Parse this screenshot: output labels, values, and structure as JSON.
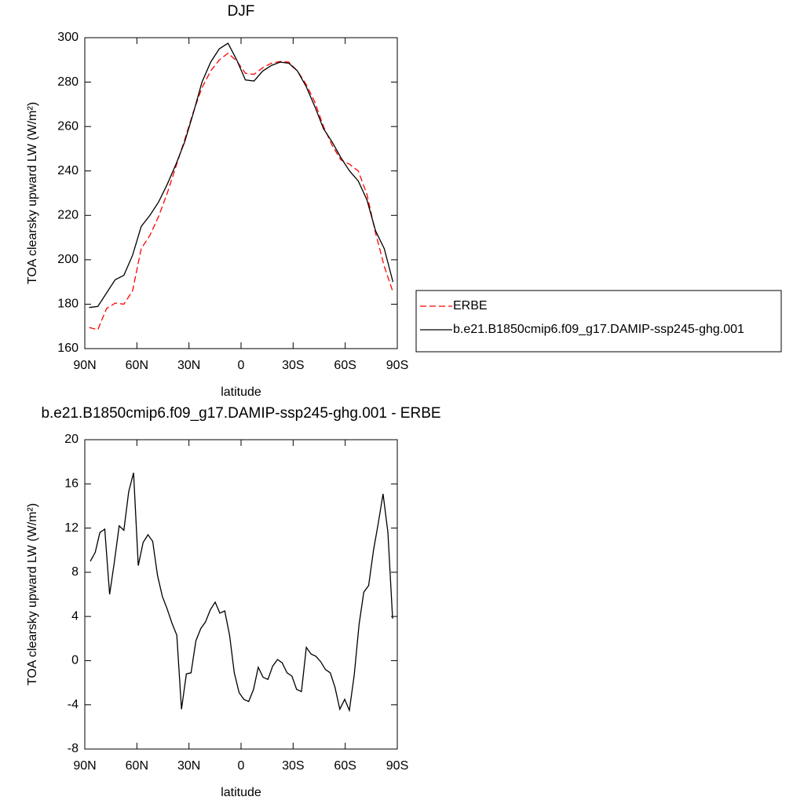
{
  "chart_data": [
    {
      "type": "line",
      "title": "DJF",
      "x_label": "latitude",
      "y_label": "TOA clearsky upward LW (W/m²)",
      "xlim": [
        90,
        -90
      ],
      "xticks": [
        {
          "value": 90,
          "label": "90N"
        },
        {
          "value": 60,
          "label": "60N"
        },
        {
          "value": 30,
          "label": "30N"
        },
        0,
        {
          "value": -30,
          "label": "30S"
        },
        {
          "value": -60,
          "label": "60S"
        },
        {
          "value": -90,
          "label": "90S"
        }
      ],
      "ylim": [
        160,
        300
      ],
      "yticks": [
        160,
        180,
        200,
        220,
        240,
        260,
        280,
        300
      ],
      "legend": "right",
      "x": [
        87.5,
        82.5,
        77.5,
        72.5,
        67.5,
        62.5,
        57.5,
        52.5,
        47.5,
        42.5,
        37.5,
        32.5,
        27.5,
        22.5,
        17.5,
        12.5,
        7.5,
        2.5,
        -2.5,
        -7.5,
        -12.5,
        -17.5,
        -22.5,
        -27.5,
        -32.5,
        -37.5,
        -42.5,
        -47.5,
        -52.5,
        -57.5,
        -62.5,
        -67.5,
        -72.5,
        -77.5,
        -82.5,
        -87.5
      ],
      "series": [
        {
          "name": "ERBE",
          "color": "#ff0000",
          "dashed": true,
          "values": [
            169.5,
            168.5,
            178,
            180.5,
            180,
            186,
            205,
            211,
            219.5,
            230,
            242,
            254,
            266.5,
            277.5,
            285,
            290,
            293,
            289.5,
            284,
            283.5,
            286.5,
            288.5,
            289.3,
            289,
            285,
            279,
            271,
            260,
            251.5,
            245,
            243,
            240,
            229.5,
            212,
            197,
            185.5
          ]
        },
        {
          "name": "b.e21.B1850cmip6.f09_g17.DAMIP-ssp245-ghg.001",
          "color": "#000000",
          "dashed": false,
          "values": [
            178.5,
            179,
            185,
            191,
            193,
            202,
            215,
            220,
            226,
            234,
            243,
            253,
            266,
            280,
            289,
            295,
            297.5,
            290,
            281,
            280.5,
            285,
            287.5,
            289,
            288.5,
            285,
            278,
            269,
            259,
            253,
            246,
            240,
            235.5,
            227,
            213,
            205,
            190
          ]
        }
      ]
    },
    {
      "type": "line",
      "title": "b.e21.B1850cmip6.f09_g17.DAMIP-ssp245-ghg.001 - ERBE",
      "x_label": "latitude",
      "y_label": "TOA clearsky upward LW (W/m²)",
      "xlim": [
        90,
        -90
      ],
      "xticks": [
        {
          "value": 90,
          "label": "90N"
        },
        {
          "value": 60,
          "label": "60N"
        },
        {
          "value": 30,
          "label": "30N"
        },
        0,
        {
          "value": -30,
          "label": "30S"
        },
        {
          "value": -60,
          "label": "60S"
        },
        {
          "value": -90,
          "label": "90S"
        }
      ],
      "ylim": [
        -8,
        20
      ],
      "yticks": [
        -8,
        -4,
        0,
        4,
        8,
        12,
        16,
        20
      ],
      "x": [
        86.8,
        84.0,
        81.3,
        78.5,
        75.7,
        73.0,
        70.2,
        67.5,
        64.7,
        61.9,
        59.2,
        56.4,
        53.6,
        50.9,
        48.1,
        45.3,
        42.6,
        39.8,
        37.0,
        34.3,
        31.5,
        28.8,
        26.0,
        23.2,
        20.5,
        17.7,
        14.9,
        12.2,
        9.4,
        6.6,
        3.9,
        1.1,
        -1.6,
        -4.4,
        -7.2,
        -9.9,
        -12.7,
        -15.5,
        -18.2,
        -21.0,
        -23.7,
        -26.5,
        -29.3,
        -32.0,
        -34.8,
        -37.6,
        -40.3,
        -43.1,
        -45.9,
        -48.6,
        -51.4,
        -54.1,
        -56.9,
        -59.7,
        -62.4,
        -65.2,
        -68.0,
        -70.7,
        -73.5,
        -76.3,
        -79.0,
        -81.8,
        -84.6,
        -87.3
      ],
      "color": "#000000",
      "values": [
        9.0,
        9.8,
        11.6,
        11.9,
        6.0,
        8.9,
        12.2,
        11.8,
        15.3,
        17.0,
        8.6,
        10.7,
        11.4,
        10.8,
        7.7,
        5.8,
        4.7,
        3.4,
        2.3,
        -4.4,
        -1.2,
        -1.1,
        1.8,
        2.9,
        3.5,
        4.6,
        5.3,
        4.3,
        4.5,
        2.3,
        -1.1,
        -2.9,
        -3.5,
        -3.7,
        -2.6,
        -0.6,
        -1.5,
        -1.7,
        -0.5,
        0.1,
        -0.2,
        -1.1,
        -1.4,
        -2.6,
        -2.8,
        1.2,
        0.6,
        0.4,
        -0.1,
        -0.8,
        -1.1,
        -2.4,
        -4.4,
        -3.5,
        -4.5,
        -1.3,
        3.3,
        6.2,
        6.8,
        10.0,
        12.4,
        15.1,
        11.6,
        3.8
      ]
    }
  ]
}
